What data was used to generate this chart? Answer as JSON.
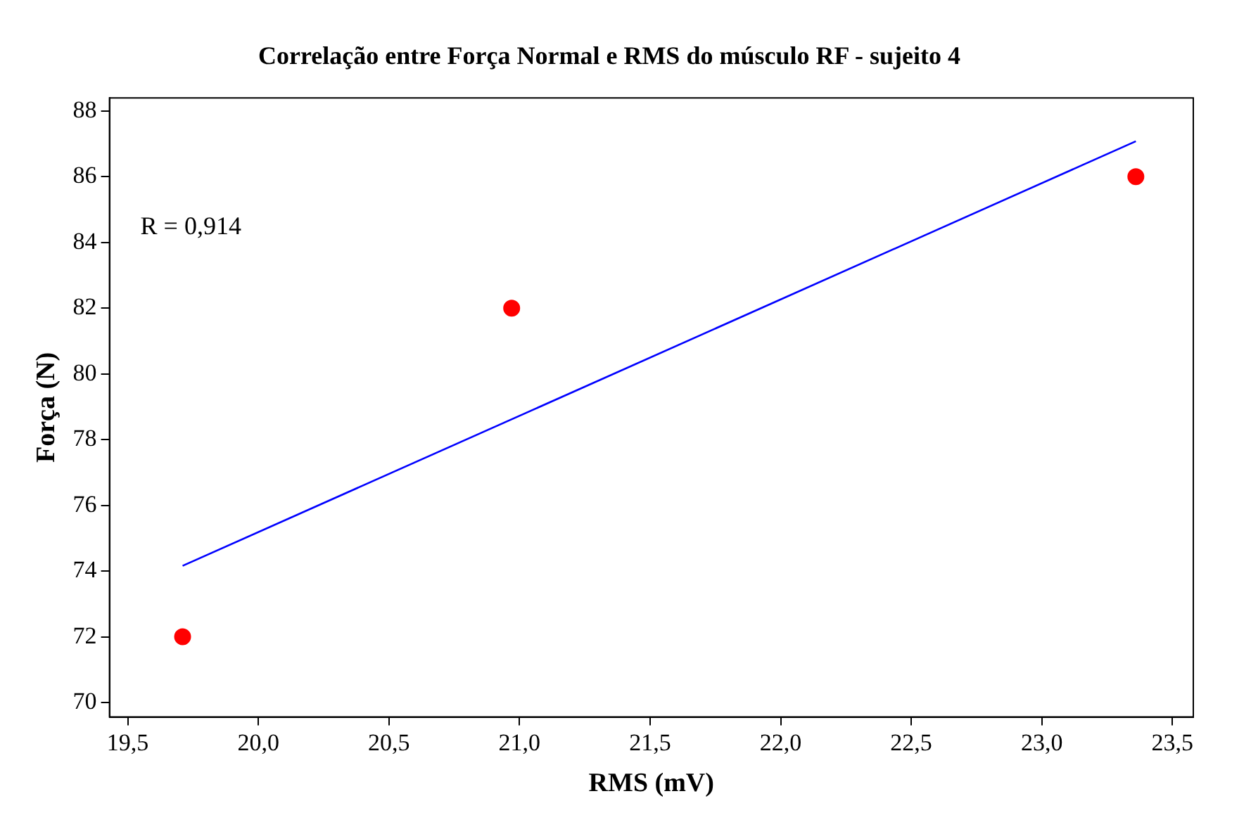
{
  "chart_data": {
    "type": "scatter",
    "title": "Correlação entre Força Normal e RMS do músculo RF - sujeito 4",
    "xlabel": "RMS (mV)",
    "ylabel": "Força (N)",
    "annotations": [
      "R = 0,914"
    ],
    "xlim": [
      19.43,
      23.58
    ],
    "ylim": [
      69.56,
      88.4
    ],
    "xticks": [
      {
        "value": 19.5,
        "label": "19,5"
      },
      {
        "value": 20,
        "label": "20,0"
      },
      {
        "value": 20.5,
        "label": "20,5"
      },
      {
        "value": 21,
        "label": "21,0"
      },
      {
        "value": 21.5,
        "label": "21,5"
      },
      {
        "value": 22,
        "label": "22,0"
      },
      {
        "value": 22.5,
        "label": "22,5"
      },
      {
        "value": 23,
        "label": "23,0"
      },
      {
        "value": 23.5,
        "label": "23,5"
      }
    ],
    "yticks": [
      70,
      72,
      74,
      76,
      78,
      80,
      82,
      84,
      86,
      88
    ],
    "grid": false,
    "legend": false,
    "marker": "circle",
    "series": [
      {
        "type": "scatter",
        "color": "#ff0000",
        "x": [
          19.71,
          20.97,
          23.36
        ],
        "values": [
          72,
          82,
          86
        ]
      },
      {
        "type": "line",
        "color": "#0000ff",
        "marker": "none",
        "x": [
          19.71,
          23.36
        ],
        "values": [
          74.16,
          87.08
        ]
      }
    ]
  }
}
